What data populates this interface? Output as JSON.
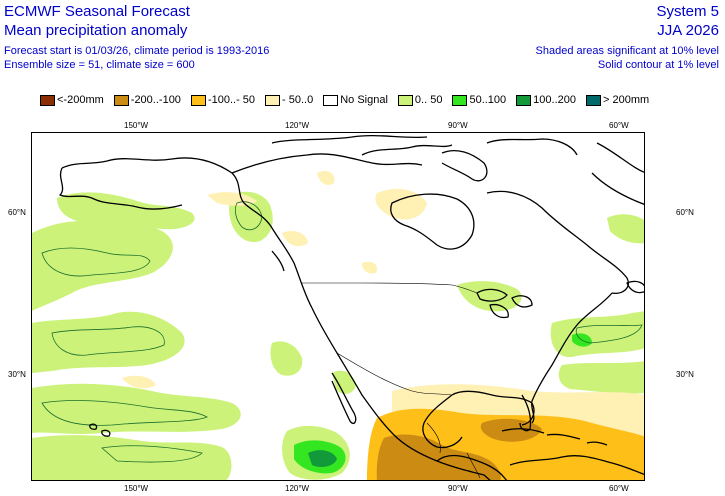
{
  "header": {
    "product": "ECMWF Seasonal Forecast",
    "variable": "Mean precipitation anomaly",
    "forecast_info": "Forecast start is 01/03/26, climate period is 1993-2016",
    "ensemble_info": "Ensemble size = 51, climate size = 600",
    "system": "System 5",
    "season": "JJA 2026",
    "sig_note": "Shaded areas significant at 10% level",
    "contour_note": "Solid contour at 1% level"
  },
  "legend": [
    {
      "label": "<-200mm",
      "color": "#8c2d04"
    },
    {
      "label": "-200..-100",
      "color": "#cc8c14"
    },
    {
      "label": "-100..- 50",
      "color": "#ffbf19"
    },
    {
      "label": "- 50..0",
      "color": "#fff0b4"
    },
    {
      "label": "No Signal",
      "color": "#ffffff"
    },
    {
      "label": "0.. 50",
      "color": "#ccf27a"
    },
    {
      "label": "50..100",
      "color": "#33e61f"
    },
    {
      "label": "100..200",
      "color": "#12993a"
    },
    {
      "label": "> 200mm",
      "color": "#006a6a"
    }
  ],
  "axes": {
    "lon_top": [
      "150°W",
      "120°W",
      "90°W",
      "60°W"
    ],
    "lon_bottom": [
      "150°W",
      "120°W",
      "90°W",
      "60°W"
    ],
    "lat_left": [
      "60°N",
      "30°N"
    ],
    "lat_right": [
      "60°N",
      "30°N"
    ]
  }
}
